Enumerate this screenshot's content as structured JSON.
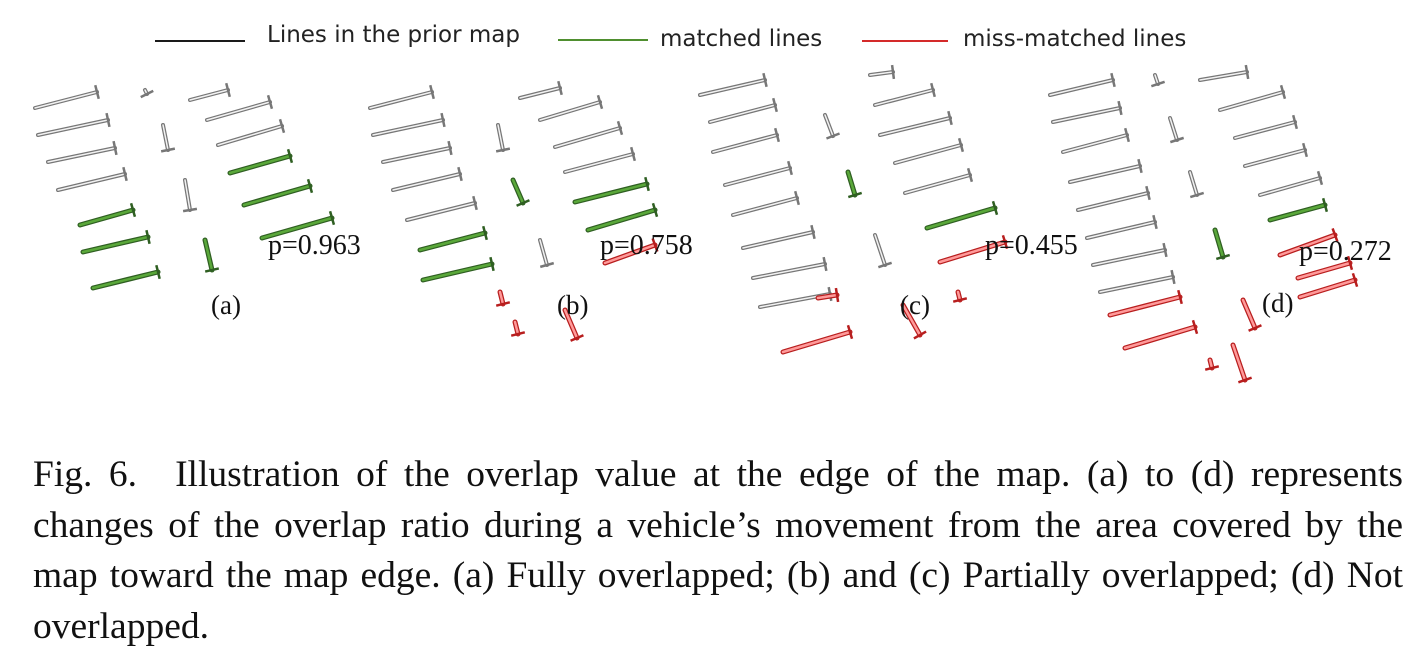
{
  "legend": [
    {
      "label": "Lines in the prior map",
      "color": "#1a1a1a"
    },
    {
      "label": "matched lines",
      "color": "#4f8f2f"
    },
    {
      "label": "miss-matched lines",
      "color": "#d42a2a"
    }
  ],
  "panels": [
    {
      "label": "(a)",
      "p": "p=0.963"
    },
    {
      "label": "(b)",
      "p": "p=0.758"
    },
    {
      "label": "(c)",
      "p": "p=0.455"
    },
    {
      "label": "(d)",
      "p": "p=0.272"
    }
  ],
  "caption": {
    "fig": "Fig. 6.",
    "text": "Illustration of the overlap value at the edge of the map. (a) to (d) represents changes of the overlap ratio during a vehicle’s movement from the area covered by the map toward the map edge. (a) Fully overlapped; (b) and (c) Partially overlapped; (d) Not overlapped."
  },
  "colors": {
    "prior": "#8a8a8a",
    "matched": "#5aa83a",
    "matched_dark": "#2f5f22",
    "miss": "#e03333"
  }
}
